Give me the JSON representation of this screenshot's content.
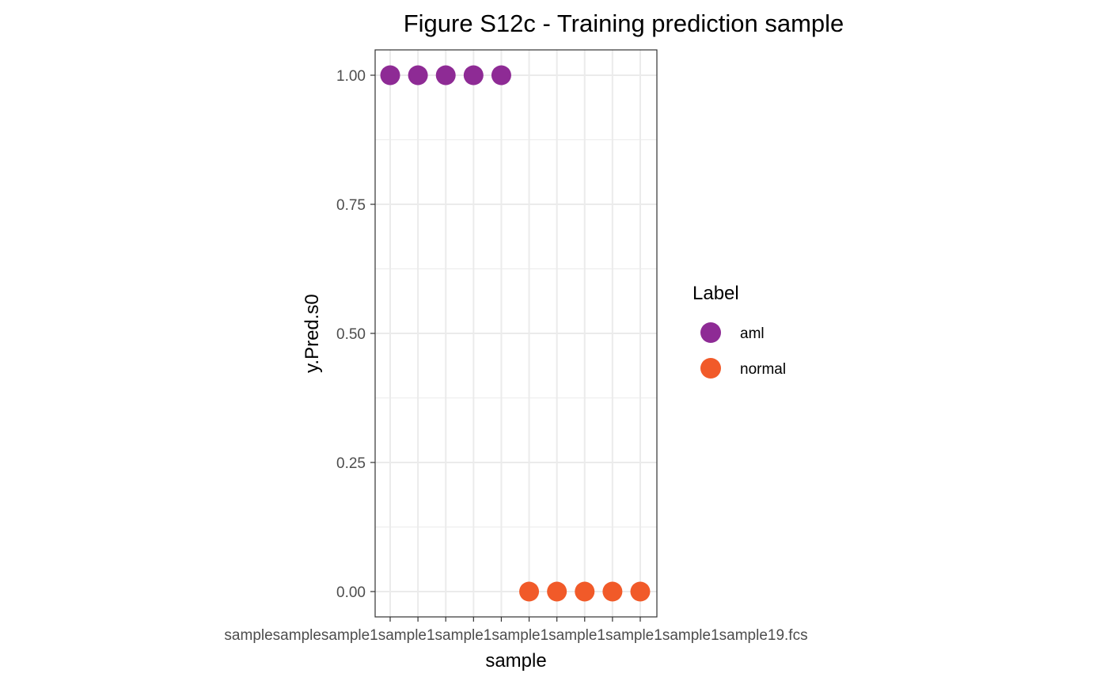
{
  "chart_data": {
    "type": "scatter",
    "title": "Figure S12c - Training prediction sample",
    "xlabel": "sample",
    "ylabel": "y.Pred.s0",
    "ylim": [
      -0.05,
      1.05
    ],
    "y_ticks": [
      "0.00",
      "0.25",
      "0.50",
      "0.75",
      "1.00"
    ],
    "y_tick_values": [
      0,
      0.25,
      0.5,
      0.75,
      1.0
    ],
    "categories": [
      "sample1.fcs",
      "sample11.fcs",
      "sample12.fcs",
      "sample13.fcs",
      "sample14.fcs",
      "sample15.fcs",
      "sample16.fcs",
      "sample17.fcs",
      "sample18.fcs",
      "sample19.fcs"
    ],
    "x_tick_labels_visible_text": "samplesamplesample1sample1sample1sample1sample1sample1sample1sample19.fcs",
    "grid": true,
    "legend": {
      "title": "Label",
      "placement": "right",
      "entries": [
        {
          "name": "aml",
          "color": "#8E2B95"
        },
        {
          "name": "normal",
          "color": "#F15A29"
        }
      ]
    },
    "series": [
      {
        "name": "aml",
        "color": "#8E2B95",
        "points": [
          {
            "x": "sample1.fcs",
            "y": 1.0
          },
          {
            "x": "sample11.fcs",
            "y": 1.0
          },
          {
            "x": "sample12.fcs",
            "y": 1.0
          },
          {
            "x": "sample13.fcs",
            "y": 1.0
          },
          {
            "x": "sample14.fcs",
            "y": 1.0
          }
        ]
      },
      {
        "name": "normal",
        "color": "#F15A29",
        "points": [
          {
            "x": "sample15.fcs",
            "y": 0.0
          },
          {
            "x": "sample16.fcs",
            "y": 0.0
          },
          {
            "x": "sample17.fcs",
            "y": 0.0
          },
          {
            "x": "sample18.fcs",
            "y": 0.0
          },
          {
            "x": "sample19.fcs",
            "y": 0.0
          }
        ]
      }
    ]
  }
}
